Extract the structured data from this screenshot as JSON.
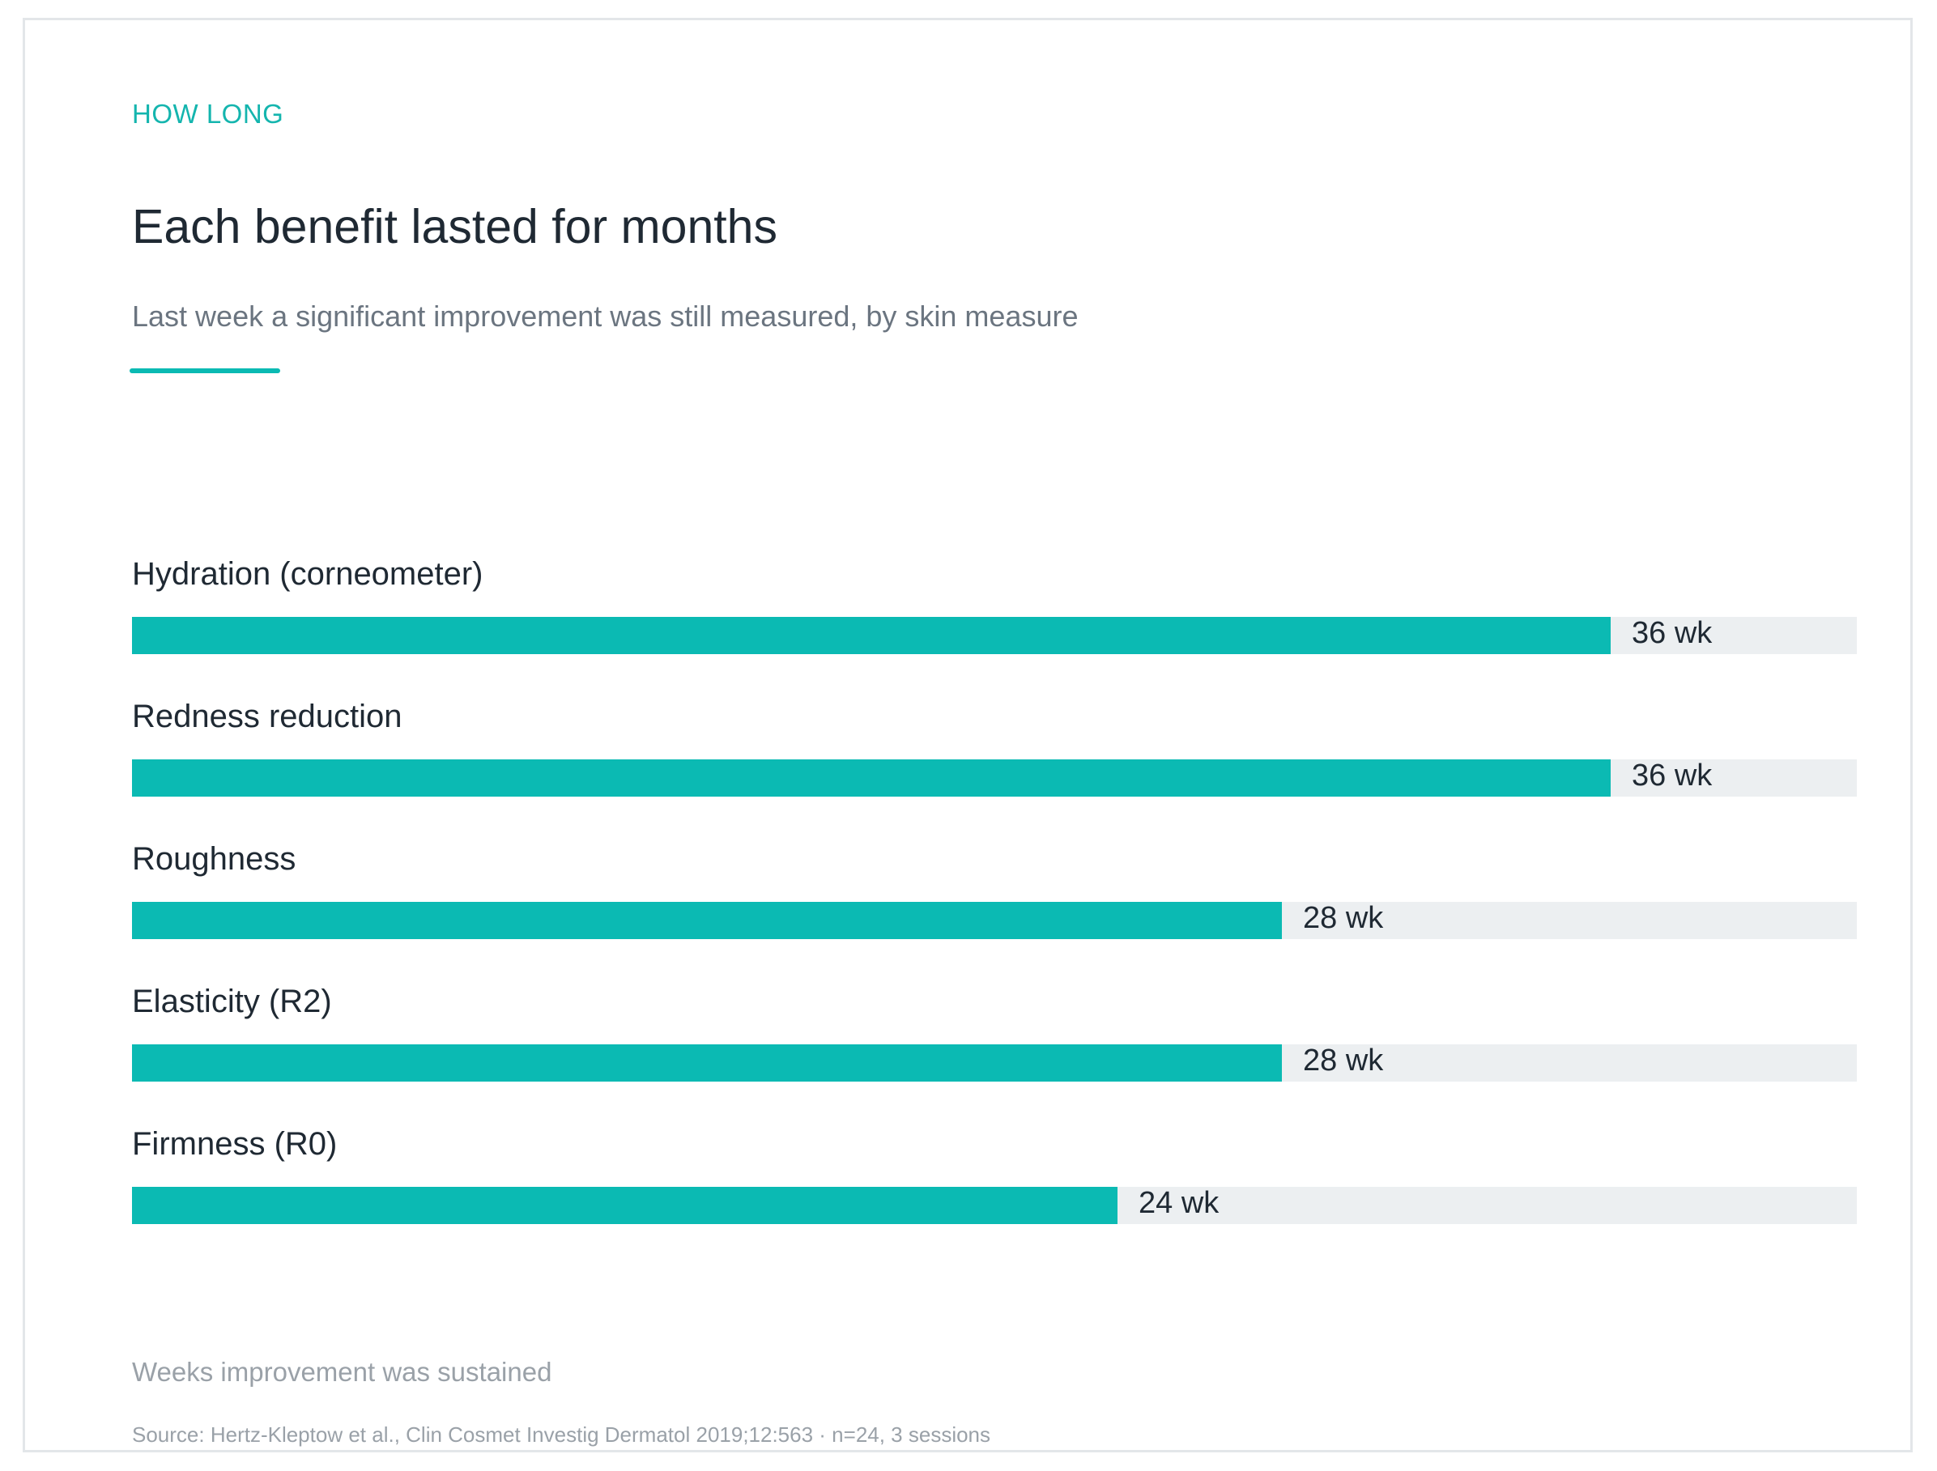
{
  "header": {
    "eyebrow": "HOW LONG",
    "title": "Each benefit lasted for months",
    "subtitle": "Last week a significant improvement was still measured, by skin measure"
  },
  "colors": {
    "accent": "#0bbab3",
    "track": "#eceff1",
    "text": "#1f2933",
    "muted": "#9aa1a8"
  },
  "chart_data": {
    "type": "bar",
    "orientation": "horizontal",
    "categories": [
      "Hydration (corneometer)",
      "Redness reduction",
      "Roughness",
      "Elasticity (R2)",
      "Firmness (R0)"
    ],
    "values": [
      36,
      36,
      28,
      28,
      24
    ],
    "unit": "wk",
    "value_labels": [
      "36 wk",
      "36 wk",
      "28 wk",
      "28 wk",
      "24 wk"
    ],
    "xlim": [
      0,
      42
    ],
    "xlabel": "Weeks improvement was sustained",
    "grid": false,
    "legend": "none"
  },
  "footer": {
    "source": "Source: Hertz-Kleptow et al., Clin Cosmet Investig Dermatol 2019;12:563  ·  n=24, 3 sessions"
  }
}
